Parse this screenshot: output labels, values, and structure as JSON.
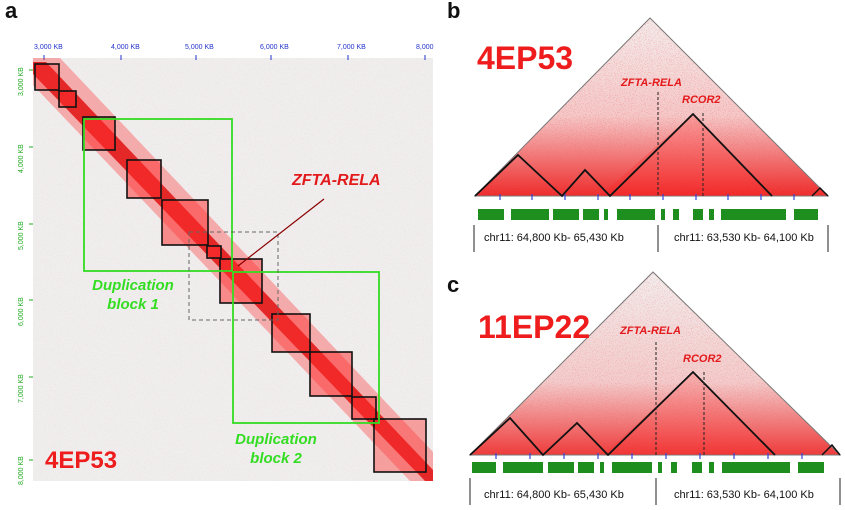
{
  "panel_a": {
    "letter": "a",
    "sample": "4EP53",
    "x_ticks": [
      "3,000 KB",
      "4,000 KB",
      "5,000 KB",
      "6,000 KB",
      "7,000 KB",
      "8,000"
    ],
    "y_ticks": [
      "3,000 KB",
      "4,000 KB",
      "5,000 KB",
      "6,000 KB",
      "7,000 KB",
      "8,000 KB"
    ],
    "fusion_label": "ZFTA-RELA",
    "dup1_line1": "Duplication",
    "dup1_line2": "block 1",
    "dup2_line1": "Duplication",
    "dup2_line2": "block 2",
    "colors": {
      "heat": "#ee1c1c",
      "duplication": "#33dd22",
      "tick_x": "#2233cc",
      "tick_y": "#22aa22"
    }
  },
  "panel_b": {
    "letter": "b",
    "sample": "4EP53",
    "gene1": "ZFTA-RELA",
    "gene2": "RCOR2",
    "region_left": "chr11: 64,800 Kb- 65,430 Kb",
    "region_right": "chr11: 63,530 Kb- 64,100 Kb"
  },
  "panel_c": {
    "letter": "c",
    "sample": "11EP22",
    "gene1": "ZFTA-RELA",
    "gene2": "RCOR2",
    "region_left": "chr11: 64,800 Kb- 65,430 Kb",
    "region_right": "chr11: 63,530 Kb- 64,100 Kb"
  }
}
